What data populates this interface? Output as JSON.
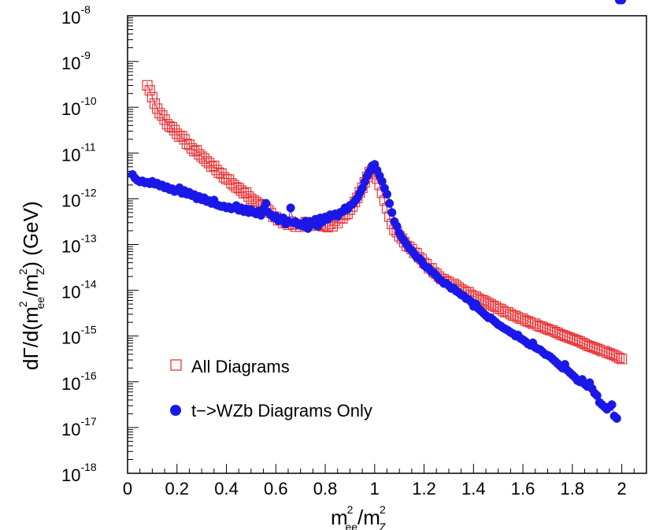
{
  "chart_data": {
    "type": "scatter",
    "title": "",
    "xlabel": {
      "base": "m",
      "sup1": "2",
      "sub1": "ee",
      "slash": "/m",
      "sup2": "2",
      "sub2": "Z"
    },
    "ylabel": {
      "pre": "dΓ/d(m",
      "sup1": "2",
      "sub1": "ee",
      "mid": "/m",
      "sup2": "2",
      "sub2": "Z",
      "post": ") (GeV)"
    },
    "x_ticks": [
      "0",
      "0.2",
      "0.4",
      "0.6",
      "0.8",
      "1",
      "1.2",
      "1.4",
      "1.6",
      "1.8",
      "2"
    ],
    "x_tick_values": [
      0,
      0.2,
      0.4,
      0.6,
      0.8,
      1.0,
      1.2,
      1.4,
      1.6,
      1.8,
      2.0
    ],
    "y_ticks": [
      {
        "base": "10",
        "exp": "-18",
        "value": -18
      },
      {
        "base": "10",
        "exp": "-17",
        "value": -17
      },
      {
        "base": "10",
        "exp": "-16",
        "value": -16
      },
      {
        "base": "10",
        "exp": "-15",
        "value": -15
      },
      {
        "base": "10",
        "exp": "-14",
        "value": -14
      },
      {
        "base": "10",
        "exp": "-13",
        "value": -13
      },
      {
        "base": "10",
        "exp": "-12",
        "value": -12
      },
      {
        "base": "10",
        "exp": "-11",
        "value": -11
      },
      {
        "base": "10",
        "exp": "-10",
        "value": -10
      },
      {
        "base": "10",
        "exp": "-9",
        "value": -9
      },
      {
        "base": "10",
        "exp": "-8",
        "value": -8
      }
    ],
    "xlim": [
      0,
      2.1
    ],
    "ylim_log10": [
      -18,
      -8
    ],
    "y_scale": "log",
    "grid": false,
    "legend_position": "bottom-left",
    "series": [
      {
        "name": "All Diagrams",
        "marker": "open-square",
        "color": "#e8373a",
        "x": [
          0.08,
          0.09,
          0.1,
          0.11,
          0.12,
          0.13,
          0.14,
          0.15,
          0.16,
          0.17,
          0.18,
          0.19,
          0.2,
          0.21,
          0.22,
          0.23,
          0.24,
          0.25,
          0.26,
          0.27,
          0.28,
          0.29,
          0.3,
          0.31,
          0.32,
          0.33,
          0.34,
          0.35,
          0.36,
          0.37,
          0.38,
          0.39,
          0.4,
          0.41,
          0.42,
          0.43,
          0.44,
          0.45,
          0.46,
          0.47,
          0.48,
          0.49,
          0.5,
          0.51,
          0.52,
          0.53,
          0.54,
          0.55,
          0.56,
          0.57,
          0.58,
          0.59,
          0.6,
          0.61,
          0.62,
          0.63,
          0.64,
          0.65,
          0.66,
          0.67,
          0.68,
          0.69,
          0.7,
          0.71,
          0.72,
          0.73,
          0.74,
          0.75,
          0.76,
          0.77,
          0.78,
          0.79,
          0.8,
          0.81,
          0.82,
          0.83,
          0.84,
          0.85,
          0.86,
          0.87,
          0.88,
          0.89,
          0.9,
          0.91,
          0.92,
          0.93,
          0.94,
          0.95,
          0.96,
          0.97,
          0.98,
          0.99,
          1.0,
          1.01,
          1.02,
          1.03,
          1.04,
          1.05,
          1.06,
          1.07,
          1.08,
          1.09,
          1.1,
          1.11,
          1.12,
          1.13,
          1.14,
          1.15,
          1.16,
          1.17,
          1.18,
          1.19,
          1.2,
          1.21,
          1.22,
          1.23,
          1.24,
          1.25,
          1.26,
          1.27,
          1.28,
          1.29,
          1.3,
          1.31,
          1.32,
          1.33,
          1.34,
          1.35,
          1.36,
          1.37,
          1.38,
          1.39,
          1.4,
          1.41,
          1.42,
          1.43,
          1.44,
          1.45,
          1.46,
          1.47,
          1.48,
          1.49,
          1.5,
          1.51,
          1.52,
          1.53,
          1.54,
          1.55,
          1.56,
          1.57,
          1.58,
          1.59,
          1.6,
          1.61,
          1.62,
          1.63,
          1.64,
          1.65,
          1.66,
          1.67,
          1.68,
          1.69,
          1.7,
          1.71,
          1.72,
          1.73,
          1.74,
          1.75,
          1.76,
          1.77,
          1.78,
          1.79,
          1.8,
          1.81,
          1.82,
          1.83,
          1.84,
          1.85,
          1.86,
          1.87,
          1.88,
          1.89,
          1.9,
          1.91,
          1.92,
          1.93,
          1.94,
          1.95,
          1.96,
          1.97,
          1.98,
          1.99,
          2.0
        ],
        "log10y": [
          -9.52,
          -9.63,
          -9.78,
          -9.92,
          -10.03,
          -10.13,
          -10.18,
          -10.27,
          -10.37,
          -10.42,
          -10.44,
          -10.5,
          -10.58,
          -10.64,
          -10.63,
          -10.7,
          -10.8,
          -10.82,
          -10.9,
          -10.96,
          -10.94,
          -11.03,
          -11.08,
          -11.12,
          -11.18,
          -11.22,
          -11.3,
          -11.28,
          -11.37,
          -11.43,
          -11.45,
          -11.53,
          -11.57,
          -11.58,
          -11.66,
          -11.7,
          -11.75,
          -11.77,
          -11.82,
          -11.88,
          -11.86,
          -11.95,
          -12.0,
          -12.04,
          -12.07,
          -12.11,
          -12.15,
          -12.13,
          -12.2,
          -12.25,
          -12.31,
          -12.39,
          -12.4,
          -12.47,
          -12.46,
          -12.53,
          -12.51,
          -12.57,
          -12.5,
          -12.55,
          -12.61,
          -12.56,
          -12.61,
          -12.56,
          -12.51,
          -12.55,
          -12.59,
          -12.53,
          -12.58,
          -12.55,
          -12.57,
          -12.6,
          -12.59,
          -12.62,
          -12.55,
          -12.6,
          -12.48,
          -12.53,
          -12.42,
          -12.43,
          -12.35,
          -12.33,
          -12.24,
          -12.17,
          -12.07,
          -11.98,
          -11.86,
          -11.76,
          -11.64,
          -11.52,
          -11.42,
          -11.38,
          -11.46,
          -11.56,
          -11.7,
          -11.87,
          -12.04,
          -12.21,
          -12.39,
          -12.55,
          -12.68,
          -12.73,
          -12.82,
          -12.87,
          -12.95,
          -13.03,
          -13.05,
          -13.1,
          -13.18,
          -13.19,
          -13.28,
          -13.32,
          -13.4,
          -13.43,
          -13.52,
          -13.52,
          -13.61,
          -13.64,
          -13.7,
          -13.75,
          -13.76,
          -13.8,
          -13.82,
          -13.86,
          -13.86,
          -13.9,
          -13.94,
          -13.98,
          -14.01,
          -14.05,
          -14.04,
          -14.1,
          -14.13,
          -14.14,
          -14.18,
          -14.21,
          -14.22,
          -14.25,
          -14.28,
          -14.31,
          -14.34,
          -14.36,
          -14.4,
          -14.41,
          -14.45,
          -14.48,
          -14.48,
          -14.52,
          -14.55,
          -14.56,
          -14.59,
          -14.62,
          -14.62,
          -14.66,
          -14.68,
          -14.7,
          -14.73,
          -14.73,
          -14.77,
          -14.79,
          -14.8,
          -14.83,
          -14.85,
          -14.87,
          -14.88,
          -14.91,
          -14.93,
          -14.96,
          -14.98,
          -15.0,
          -15.02,
          -15.04,
          -15.06,
          -15.08,
          -15.1,
          -15.12,
          -15.15,
          -15.17,
          -15.2,
          -15.22,
          -15.24,
          -15.26,
          -15.28,
          -15.3,
          -15.33,
          -15.33,
          -15.36,
          -15.38,
          -15.4,
          -15.42,
          -15.45,
          -15.48,
          -15.5,
          -15.52,
          -15.55,
          -15.58,
          -15.61,
          -15.63
        ]
      },
      {
        "name": "t−>WZb Diagrams Only",
        "marker": "filled-circle",
        "color": "#1a18e8",
        "x": [
          0.02,
          0.03,
          0.04,
          0.05,
          0.06,
          0.07,
          0.08,
          0.09,
          0.1,
          0.11,
          0.12,
          0.13,
          0.14,
          0.15,
          0.16,
          0.17,
          0.18,
          0.19,
          0.2,
          0.21,
          0.22,
          0.23,
          0.24,
          0.25,
          0.26,
          0.27,
          0.28,
          0.29,
          0.3,
          0.31,
          0.32,
          0.33,
          0.34,
          0.35,
          0.36,
          0.37,
          0.38,
          0.39,
          0.4,
          0.41,
          0.42,
          0.43,
          0.44,
          0.45,
          0.46,
          0.47,
          0.48,
          0.49,
          0.5,
          0.51,
          0.52,
          0.53,
          0.54,
          0.55,
          0.56,
          0.57,
          0.58,
          0.59,
          0.6,
          0.61,
          0.62,
          0.63,
          0.64,
          0.65,
          0.66,
          0.67,
          0.68,
          0.69,
          0.7,
          0.71,
          0.72,
          0.73,
          0.74,
          0.75,
          0.76,
          0.77,
          0.78,
          0.79,
          0.8,
          0.81,
          0.82,
          0.83,
          0.84,
          0.85,
          0.86,
          0.87,
          0.88,
          0.89,
          0.9,
          0.91,
          0.92,
          0.93,
          0.94,
          0.95,
          0.96,
          0.97,
          0.98,
          0.99,
          1.0,
          1.01,
          1.02,
          1.03,
          1.04,
          1.05,
          1.06,
          1.07,
          1.08,
          1.09,
          1.1,
          1.11,
          1.12,
          1.13,
          1.14,
          1.15,
          1.16,
          1.17,
          1.18,
          1.19,
          1.2,
          1.21,
          1.22,
          1.23,
          1.24,
          1.25,
          1.26,
          1.27,
          1.28,
          1.29,
          1.3,
          1.31,
          1.32,
          1.33,
          1.34,
          1.35,
          1.36,
          1.37,
          1.38,
          1.39,
          1.4,
          1.41,
          1.42,
          1.43,
          1.44,
          1.45,
          1.46,
          1.47,
          1.48,
          1.49,
          1.5,
          1.51,
          1.52,
          1.53,
          1.54,
          1.55,
          1.56,
          1.57,
          1.58,
          1.59,
          1.6,
          1.61,
          1.62,
          1.63,
          1.64,
          1.65,
          1.66,
          1.67,
          1.68,
          1.69,
          1.7,
          1.71,
          1.72,
          1.73,
          1.74,
          1.75,
          1.76,
          1.77,
          1.78,
          1.79,
          1.8,
          1.81,
          1.82,
          1.83,
          1.84,
          1.85,
          1.86,
          1.87,
          1.88,
          1.89,
          1.9,
          1.91,
          1.92,
          1.93,
          1.94,
          1.95,
          1.96,
          1.97,
          1.98,
          1.99,
          2.0
        ],
        "log10y": [
          -11.47,
          -11.55,
          -11.6,
          -11.63,
          -11.61,
          -11.65,
          -11.64,
          -11.67,
          -11.62,
          -11.68,
          -11.66,
          -11.72,
          -11.7,
          -11.76,
          -11.74,
          -11.8,
          -11.78,
          -11.84,
          -11.82,
          -11.76,
          -11.88,
          -11.82,
          -11.9,
          -11.86,
          -11.93,
          -11.91,
          -12.0,
          -11.95,
          -12.02,
          -11.98,
          -12.06,
          -12.04,
          -12.1,
          -12.03,
          -12.13,
          -12.15,
          -12.17,
          -12.16,
          -12.2,
          -12.18,
          -12.22,
          -12.2,
          -12.15,
          -12.25,
          -12.2,
          -12.28,
          -12.22,
          -12.3,
          -12.24,
          -12.3,
          -12.33,
          -12.27,
          -12.36,
          -12.22,
          -12.1,
          -12.3,
          -12.35,
          -12.4,
          -12.38,
          -12.48,
          -12.42,
          -12.42,
          -12.55,
          -12.49,
          -12.2,
          -12.52,
          -12.5,
          -12.57,
          -12.56,
          -12.6,
          -12.49,
          -12.65,
          -12.5,
          -12.55,
          -12.45,
          -12.6,
          -12.42,
          -12.5,
          -12.4,
          -12.45,
          -12.35,
          -12.38,
          -12.33,
          -12.38,
          -12.3,
          -12.28,
          -12.2,
          -12.23,
          -12.15,
          -12.12,
          -12.05,
          -11.98,
          -11.87,
          -11.77,
          -11.63,
          -11.5,
          -11.4,
          -11.28,
          -11.25,
          -11.38,
          -11.5,
          -11.62,
          -11.77,
          -11.9,
          -12.1,
          -12.3,
          -12.5,
          -12.6,
          -12.75,
          -12.85,
          -12.92,
          -13.0,
          -13.08,
          -13.13,
          -13.2,
          -13.28,
          -13.3,
          -13.36,
          -13.45,
          -13.5,
          -13.52,
          -13.6,
          -13.62,
          -13.68,
          -13.75,
          -13.79,
          -13.85,
          -13.85,
          -13.9,
          -13.96,
          -13.95,
          -14.02,
          -14.05,
          -14.1,
          -14.12,
          -14.18,
          -14.2,
          -14.25,
          -14.35,
          -14.3,
          -14.4,
          -14.45,
          -14.5,
          -14.55,
          -14.6,
          -14.6,
          -14.65,
          -14.7,
          -14.75,
          -14.78,
          -14.82,
          -14.85,
          -14.88,
          -14.92,
          -14.95,
          -15.0,
          -14.98,
          -15.05,
          -15.08,
          -15.12,
          -15.17,
          -15.2,
          -15.15,
          -15.25,
          -15.28,
          -15.3,
          -15.35,
          -15.4,
          -15.42,
          -15.45,
          -15.5,
          -15.55,
          -15.6,
          -15.65,
          -15.7,
          -15.62,
          -15.75,
          -15.8,
          -15.85,
          -15.9,
          -15.97,
          -16.0,
          -15.95,
          -16.05,
          -16.1,
          -16.02,
          -16.15,
          -16.25,
          -16.3,
          -16.45,
          -16.5,
          -16.55,
          -16.6,
          -16.55,
          -16.5,
          -16.75,
          -16.8
        ]
      }
    ]
  }
}
